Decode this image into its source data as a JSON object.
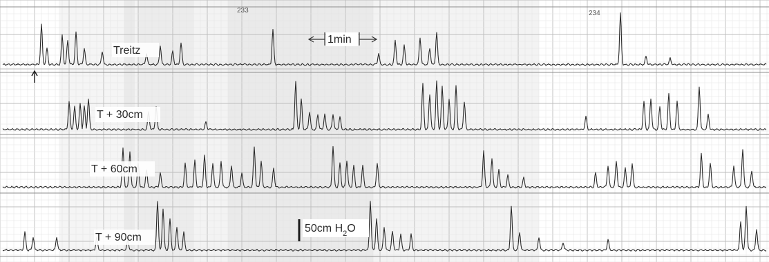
{
  "chart_data": {
    "type": "line",
    "title": "",
    "xlabel": "",
    "ylabel": "",
    "page_numbers": [
      "233",
      "234"
    ],
    "scale_bars": {
      "time": "1min",
      "pressure": "50cm",
      "pressure_unit": "H",
      "pressure_subscript": "2",
      "pressure_suffix": "O"
    },
    "grid": true,
    "colors": {
      "paper": "#ffffff",
      "grid_minor": "#e3e3e3",
      "grid_major": "#bdbdbd",
      "shade": "#9a9a9a",
      "trace": "#2b2b2b"
    },
    "series": [
      {
        "name": "Treitz",
        "baseline_frac": 0.88,
        "peaks": [
          [
            60,
            0.75
          ],
          [
            68,
            0.3
          ],
          [
            90,
            0.55
          ],
          [
            98,
            0.45
          ],
          [
            110,
            0.6
          ],
          [
            122,
            0.3
          ],
          [
            148,
            0.25
          ],
          [
            212,
            0.2
          ],
          [
            232,
            0.35
          ],
          [
            250,
            0.25
          ],
          [
            262,
            0.4
          ],
          [
            395,
            0.65
          ],
          [
            548,
            0.2
          ],
          [
            572,
            0.45
          ],
          [
            585,
            0.35
          ],
          [
            608,
            0.5
          ],
          [
            622,
            0.3
          ],
          [
            632,
            0.6
          ],
          [
            898,
            0.95
          ],
          [
            935,
            0.15
          ],
          [
            970,
            0.12
          ]
        ]
      },
      {
        "name": "T + 30cm",
        "baseline_frac": 0.92,
        "peaks": [
          [
            100,
            0.55
          ],
          [
            108,
            0.45
          ],
          [
            116,
            0.5
          ],
          [
            122,
            0.45
          ],
          [
            128,
            0.6
          ],
          [
            215,
            0.35
          ],
          [
            226,
            0.45
          ],
          [
            298,
            0.15
          ],
          [
            428,
            0.95
          ],
          [
            436,
            0.6
          ],
          [
            448,
            0.35
          ],
          [
            460,
            0.3
          ],
          [
            470,
            0.3
          ],
          [
            482,
            0.3
          ],
          [
            492,
            0.25
          ],
          [
            612,
            0.9
          ],
          [
            622,
            0.7
          ],
          [
            632,
            0.95
          ],
          [
            640,
            0.85
          ],
          [
            650,
            0.6
          ],
          [
            660,
            0.85
          ],
          [
            672,
            0.55
          ],
          [
            848,
            0.25
          ],
          [
            932,
            0.55
          ],
          [
            942,
            0.6
          ],
          [
            955,
            0.45
          ],
          [
            968,
            0.7
          ],
          [
            980,
            0.55
          ],
          [
            1012,
            0.85
          ],
          [
            1025,
            0.3
          ]
        ]
      },
      {
        "name": "T + 60cm",
        "baseline_frac": 0.9,
        "peaks": [
          [
            178,
            0.8
          ],
          [
            188,
            0.75
          ],
          [
            200,
            0.5
          ],
          [
            212,
            0.35
          ],
          [
            232,
            0.3
          ],
          [
            268,
            0.5
          ],
          [
            282,
            0.55
          ],
          [
            296,
            0.65
          ],
          [
            308,
            0.5
          ],
          [
            320,
            0.55
          ],
          [
            335,
            0.45
          ],
          [
            350,
            0.3
          ],
          [
            368,
            0.85
          ],
          [
            378,
            0.55
          ],
          [
            396,
            0.4
          ],
          [
            482,
            0.85
          ],
          [
            492,
            0.5
          ],
          [
            502,
            0.55
          ],
          [
            512,
            0.45
          ],
          [
            525,
            0.45
          ],
          [
            546,
            0.5
          ],
          [
            700,
            0.75
          ],
          [
            712,
            0.6
          ],
          [
            722,
            0.35
          ],
          [
            735,
            0.25
          ],
          [
            758,
            0.2
          ],
          [
            862,
            0.3
          ],
          [
            880,
            0.45
          ],
          [
            892,
            0.55
          ],
          [
            905,
            0.4
          ],
          [
            915,
            0.5
          ],
          [
            1015,
            0.7
          ],
          [
            1028,
            0.5
          ],
          [
            1062,
            0.45
          ],
          [
            1075,
            0.8
          ],
          [
            1088,
            0.35
          ]
        ]
      },
      {
        "name": "T + 90cm",
        "baseline_frac": 0.9,
        "peaks": [
          [
            36,
            0.35
          ],
          [
            48,
            0.25
          ],
          [
            82,
            0.25
          ],
          [
            140,
            0.25
          ],
          [
            185,
            0.2
          ],
          [
            228,
            0.95
          ],
          [
            236,
            0.8
          ],
          [
            246,
            0.6
          ],
          [
            256,
            0.45
          ],
          [
            266,
            0.35
          ],
          [
            536,
            0.95
          ],
          [
            545,
            0.6
          ],
          [
            556,
            0.45
          ],
          [
            568,
            0.35
          ],
          [
            580,
            0.3
          ],
          [
            595,
            0.3
          ],
          [
            740,
            0.85
          ],
          [
            752,
            0.35
          ],
          [
            780,
            0.25
          ],
          [
            815,
            0.15
          ],
          [
            880,
            0.2
          ],
          [
            1072,
            0.55
          ],
          [
            1080,
            0.85
          ],
          [
            1095,
            0.4
          ]
        ]
      }
    ]
  }
}
